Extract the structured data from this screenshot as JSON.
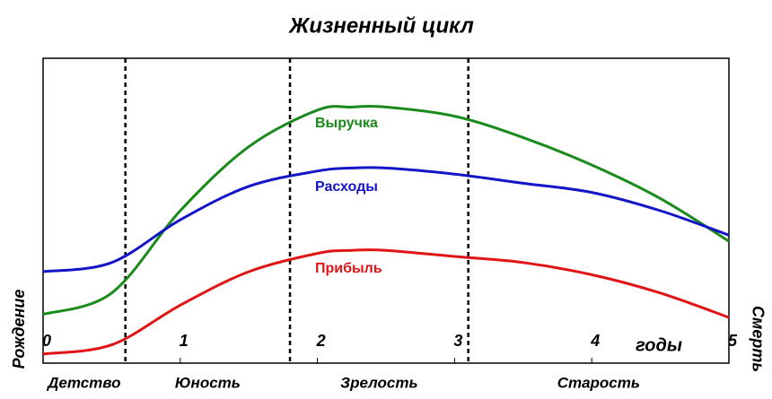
{
  "chart_data": {
    "type": "line",
    "title": "Жизненный цикл",
    "x_label": "годы",
    "left_label": "Рождение",
    "right_label": "Смерть",
    "x": [
      0,
      0.5,
      1,
      1.5,
      2,
      2.25,
      2.5,
      3,
      3.5,
      4,
      4.5,
      5
    ],
    "series": [
      {
        "name": "Выручка",
        "color": "#1a8a1a",
        "values": [
          16,
          23,
          50,
          71,
          83,
          84,
          84,
          81,
          74,
          65,
          54,
          40
        ]
      },
      {
        "name": "Расходы",
        "color": "#1414c8",
        "values": [
          30,
          33,
          47,
          58,
          63,
          64,
          64,
          62,
          59,
          56,
          50,
          42
        ]
      },
      {
        "name": "Прибыль",
        "color": "#e01414",
        "values": [
          3,
          6,
          19,
          30,
          36,
          37,
          37,
          35,
          33,
          29,
          23,
          15
        ]
      }
    ],
    "stages": [
      "Детство",
      "Юность",
      "Зрелость",
      "Старость"
    ],
    "stage_boundaries": [
      0.6,
      1.8,
      3.1
    ],
    "xlim": [
      0,
      5
    ],
    "xticks": [
      0,
      1,
      2,
      3,
      4,
      5
    ],
    "ylim": [
      0,
      100
    ]
  }
}
